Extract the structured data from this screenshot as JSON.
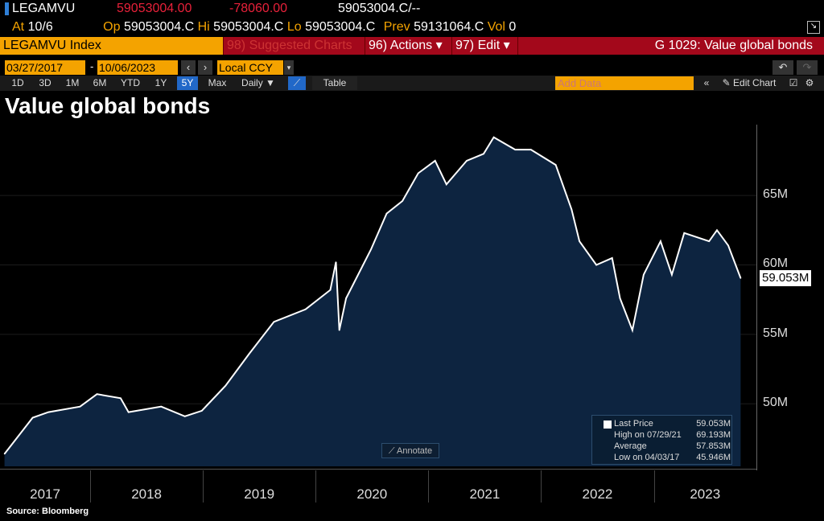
{
  "header": {
    "ticker": "LEGAMVU",
    "last": "59053004.00",
    "change": "-78060.00",
    "bidask": "59053004.C/--",
    "at_label": "At",
    "at": "10/6",
    "op_label": "Op",
    "op": "59053004.C",
    "hi_label": "Hi",
    "hi": "59053004.C",
    "lo_label": "Lo",
    "lo": "59053004.C",
    "prev_label": "Prev",
    "prev": "59131064.C",
    "vol_label": "Vol",
    "vol": "0"
  },
  "menubar": {
    "security": "LEGAMVU Index",
    "suggested": "98) Suggested Charts",
    "actions": "96) Actions ▾",
    "edit": "97) Edit ▾",
    "function": "G 1029: Value global bonds"
  },
  "controls": {
    "start_date": "03/27/2017",
    "dash": "-",
    "end_date": "10/06/2023",
    "currency": "Local CCY",
    "periods": [
      "1D",
      "3D",
      "1M",
      "6M",
      "YTD",
      "1Y",
      "5Y",
      "Max"
    ],
    "active_period": "5Y",
    "frequency": "Daily ▼",
    "table": "Table",
    "add_data_placeholder": "Add Data",
    "edit_chart": "Edit Chart"
  },
  "title": "Value global bonds",
  "source": "Source: Bloomberg",
  "annotate": "Annotate",
  "price_tag": "59.053M",
  "colors": {
    "fill": "#0d2440",
    "line": "#ffffff",
    "accent": "#f4a300",
    "bar": "#a3081b"
  },
  "chart_data": {
    "type": "area",
    "title": "Value global bonds",
    "x_unit": "year",
    "xlim": [
      2017.2,
      2023.91
    ],
    "ylim": [
      45.5,
      70.1
    ],
    "yticks": [
      {
        "v": 50,
        "label": "50M"
      },
      {
        "v": 55,
        "label": "55M"
      },
      {
        "v": 60,
        "label": "60M"
      },
      {
        "v": 65,
        "label": "65M"
      }
    ],
    "xticks": [
      "2017",
      "2018",
      "2019",
      "2020",
      "2021",
      "2022",
      "2023"
    ],
    "series": [
      {
        "name": "Last Price",
        "x": [
          2017.24,
          2017.49,
          2017.63,
          2017.91,
          2018.06,
          2018.27,
          2018.34,
          2018.63,
          2018.84,
          2018.99,
          2019.2,
          2019.41,
          2019.63,
          2019.91,
          2020.13,
          2020.18,
          2020.21,
          2020.27,
          2020.49,
          2020.63,
          2020.77,
          2020.91,
          2021.06,
          2021.16,
          2021.34,
          2021.49,
          2021.58,
          2021.77,
          2021.91,
          2022.13,
          2022.27,
          2022.34,
          2022.49,
          2022.63,
          2022.7,
          2022.81,
          2022.91,
          2023.06,
          2023.16,
          2023.27,
          2023.49,
          2023.56,
          2023.66,
          2023.77
        ],
        "y": [
          46.4,
          49.0,
          49.4,
          49.8,
          50.7,
          50.4,
          49.4,
          49.8,
          49.1,
          49.5,
          51.3,
          53.6,
          55.9,
          56.8,
          58.2,
          60.2,
          55.3,
          57.6,
          61.1,
          63.7,
          64.6,
          66.6,
          67.5,
          65.8,
          67.5,
          68.0,
          69.19,
          68.3,
          68.3,
          67.2,
          64.0,
          61.7,
          60.0,
          60.5,
          57.6,
          55.3,
          59.3,
          61.7,
          59.3,
          62.3,
          61.7,
          62.5,
          61.4,
          59.05
        ]
      }
    ],
    "legend": [
      {
        "label": "Last Price",
        "value": "59.053M"
      },
      {
        "label": "High on 07/29/21",
        "value": "69.193M"
      },
      {
        "label": "Average",
        "value": "57.853M"
      },
      {
        "label": "Low on 04/03/17",
        "value": "45.946M"
      }
    ]
  }
}
